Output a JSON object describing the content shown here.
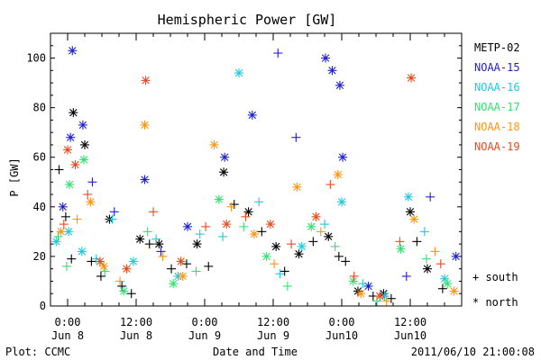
{
  "chart_data": {
    "type": "scatter",
    "title": "Hemispheric Power [GW]",
    "xlabel": "Date and Time",
    "ylabel": "P [GW]",
    "ylim": [
      0,
      110
    ],
    "xlim": [
      "2011-06-07 21:00",
      "2011-06-10 21:00"
    ],
    "grid": false,
    "legend_position": "right",
    "x_ticks": [
      {
        "t": "2011-06-08 00:00",
        "line1": "0:00",
        "line2": "Jun 8"
      },
      {
        "t": "2011-06-08 12:00",
        "line1": "12:00",
        "line2": "Jun 8"
      },
      {
        "t": "2011-06-09 00:00",
        "line1": "0:00",
        "line2": "Jun 9"
      },
      {
        "t": "2011-06-09 12:00",
        "line1": "12:00",
        "line2": "Jun 9"
      },
      {
        "t": "2011-06-10 00:00",
        "line1": "0:00",
        "line2": "Jun10"
      },
      {
        "t": "2011-06-10 12:00",
        "line1": "12:00",
        "line2": "Jun10"
      }
    ],
    "y_ticks": [
      0,
      20,
      40,
      60,
      80,
      100
    ],
    "markers": {
      "south": "+",
      "north": "*"
    },
    "marker_legend": [
      {
        "symbol": "+",
        "label": "south"
      },
      {
        "symbol": "*",
        "label": "north"
      }
    ],
    "series": [
      {
        "name": "METP-02",
        "color": "#000000",
        "points": [
          {
            "x": "2011-06-07 22:30",
            "y": 55,
            "hemisphere": "south"
          },
          {
            "x": "2011-06-07 23:40",
            "y": 36,
            "hemisphere": "south"
          },
          {
            "x": "2011-06-08 00:40",
            "y": 19,
            "hemisphere": "south"
          },
          {
            "x": "2011-06-08 01:00",
            "y": 78,
            "hemisphere": "north"
          },
          {
            "x": "2011-06-08 03:00",
            "y": 65,
            "hemisphere": "north"
          },
          {
            "x": "2011-06-08 04:10",
            "y": 18,
            "hemisphere": "south"
          },
          {
            "x": "2011-06-08 05:50",
            "y": 12,
            "hemisphere": "south"
          },
          {
            "x": "2011-06-08 07:20",
            "y": 35,
            "hemisphere": "north"
          },
          {
            "x": "2011-06-08 09:30",
            "y": 8,
            "hemisphere": "south"
          },
          {
            "x": "2011-06-08 11:10",
            "y": 5,
            "hemisphere": "south"
          },
          {
            "x": "2011-06-08 12:40",
            "y": 27,
            "hemisphere": "north"
          },
          {
            "x": "2011-06-08 14:20",
            "y": 25,
            "hemisphere": "south"
          },
          {
            "x": "2011-06-08 16:00",
            "y": 25,
            "hemisphere": "north"
          },
          {
            "x": "2011-06-08 18:10",
            "y": 15,
            "hemisphere": "south"
          },
          {
            "x": "2011-06-08 20:50",
            "y": 17,
            "hemisphere": "south"
          },
          {
            "x": "2011-06-08 22:40",
            "y": 25,
            "hemisphere": "north"
          },
          {
            "x": "2011-06-09 00:40",
            "y": 16,
            "hemisphere": "south"
          },
          {
            "x": "2011-06-09 03:20",
            "y": 54,
            "hemisphere": "north"
          },
          {
            "x": "2011-06-09 05:10",
            "y": 41,
            "hemisphere": "south"
          },
          {
            "x": "2011-06-09 07:40",
            "y": 38,
            "hemisphere": "north"
          },
          {
            "x": "2011-06-09 10:00",
            "y": 30,
            "hemisphere": "south"
          },
          {
            "x": "2011-06-09 12:30",
            "y": 24,
            "hemisphere": "north"
          },
          {
            "x": "2011-06-09 14:00",
            "y": 14,
            "hemisphere": "south"
          },
          {
            "x": "2011-06-09 16:30",
            "y": 21,
            "hemisphere": "north"
          },
          {
            "x": "2011-06-09 19:00",
            "y": 26,
            "hemisphere": "south"
          },
          {
            "x": "2011-06-09 21:40",
            "y": 28,
            "hemisphere": "north"
          },
          {
            "x": "2011-06-09 23:30",
            "y": 20,
            "hemisphere": "south"
          },
          {
            "x": "2011-06-10 00:40",
            "y": 18,
            "hemisphere": "south"
          },
          {
            "x": "2011-06-10 02:50",
            "y": 6,
            "hemisphere": "north"
          },
          {
            "x": "2011-06-10 05:30",
            "y": 4,
            "hemisphere": "south"
          },
          {
            "x": "2011-06-10 07:20",
            "y": 5,
            "hemisphere": "north"
          },
          {
            "x": "2011-06-10 08:40",
            "y": 3,
            "hemisphere": "south"
          },
          {
            "x": "2011-06-10 12:00",
            "y": 38,
            "hemisphere": "north"
          },
          {
            "x": "2011-06-10 13:10",
            "y": 26,
            "hemisphere": "south"
          },
          {
            "x": "2011-06-10 15:00",
            "y": 15,
            "hemisphere": "north"
          },
          {
            "x": "2011-06-10 17:40",
            "y": 7,
            "hemisphere": "south"
          }
        ]
      },
      {
        "name": "NOAA-15",
        "color": "#1f1fd0",
        "points": [
          {
            "x": "2011-06-07 23:10",
            "y": 40,
            "hemisphere": "north"
          },
          {
            "x": "2011-06-08 00:30",
            "y": 68,
            "hemisphere": "north"
          },
          {
            "x": "2011-06-08 00:50",
            "y": 103,
            "hemisphere": "north"
          },
          {
            "x": "2011-06-08 02:40",
            "y": 73,
            "hemisphere": "north"
          },
          {
            "x": "2011-06-08 04:20",
            "y": 50,
            "hemisphere": "south"
          },
          {
            "x": "2011-06-08 08:10",
            "y": 38,
            "hemisphere": "south"
          },
          {
            "x": "2011-06-08 13:30",
            "y": 51,
            "hemisphere": "north"
          },
          {
            "x": "2011-06-08 16:20",
            "y": 22,
            "hemisphere": "south"
          },
          {
            "x": "2011-06-08 21:00",
            "y": 32,
            "hemisphere": "north"
          },
          {
            "x": "2011-06-09 03:30",
            "y": 60,
            "hemisphere": "north"
          },
          {
            "x": "2011-06-09 08:20",
            "y": 77,
            "hemisphere": "north"
          },
          {
            "x": "2011-06-09 12:50",
            "y": 102,
            "hemisphere": "south"
          },
          {
            "x": "2011-06-09 16:00",
            "y": 68,
            "hemisphere": "south"
          },
          {
            "x": "2011-06-09 21:10",
            "y": 100,
            "hemisphere": "north"
          },
          {
            "x": "2011-06-09 22:20",
            "y": 95,
            "hemisphere": "north"
          },
          {
            "x": "2011-06-09 23:40",
            "y": 89,
            "hemisphere": "north"
          },
          {
            "x": "2011-06-10 00:10",
            "y": 60,
            "hemisphere": "north"
          },
          {
            "x": "2011-06-10 04:40",
            "y": 8,
            "hemisphere": "north"
          },
          {
            "x": "2011-06-10 11:20",
            "y": 12,
            "hemisphere": "south"
          },
          {
            "x": "2011-06-10 15:30",
            "y": 44,
            "hemisphere": "south"
          },
          {
            "x": "2011-06-10 20:00",
            "y": 20,
            "hemisphere": "north"
          }
        ]
      },
      {
        "name": "NOAA-16",
        "color": "#1fc8dc",
        "points": [
          {
            "x": "2011-06-07 22:00",
            "y": 26,
            "hemisphere": "north"
          },
          {
            "x": "2011-06-08 00:10",
            "y": 30,
            "hemisphere": "north"
          },
          {
            "x": "2011-06-08 02:30",
            "y": 22,
            "hemisphere": "north"
          },
          {
            "x": "2011-06-08 05:00",
            "y": 19,
            "hemisphere": "south"
          },
          {
            "x": "2011-06-08 07:50",
            "y": 35,
            "hemisphere": "south"
          },
          {
            "x": "2011-06-08 11:30",
            "y": 18,
            "hemisphere": "north"
          },
          {
            "x": "2011-06-08 15:30",
            "y": 27,
            "hemisphere": "south"
          },
          {
            "x": "2011-06-08 19:20",
            "y": 12,
            "hemisphere": "north"
          },
          {
            "x": "2011-06-08 23:10",
            "y": 29,
            "hemisphere": "south"
          },
          {
            "x": "2011-06-09 03:10",
            "y": 28,
            "hemisphere": "south"
          },
          {
            "x": "2011-06-09 06:00",
            "y": 94,
            "hemisphere": "north"
          },
          {
            "x": "2011-06-09 09:30",
            "y": 42,
            "hemisphere": "south"
          },
          {
            "x": "2011-06-09 13:10",
            "y": 13,
            "hemisphere": "south"
          },
          {
            "x": "2011-06-09 17:00",
            "y": 24,
            "hemisphere": "north"
          },
          {
            "x": "2011-06-09 21:00",
            "y": 33,
            "hemisphere": "south"
          },
          {
            "x": "2011-06-10 00:00",
            "y": 42,
            "hemisphere": "north"
          },
          {
            "x": "2011-06-10 03:40",
            "y": 9,
            "hemisphere": "south"
          },
          {
            "x": "2011-06-10 07:30",
            "y": 4,
            "hemisphere": "north"
          },
          {
            "x": "2011-06-10 11:40",
            "y": 44,
            "hemisphere": "north"
          },
          {
            "x": "2011-06-10 14:30",
            "y": 30,
            "hemisphere": "south"
          },
          {
            "x": "2011-06-10 18:00",
            "y": 11,
            "hemisphere": "north"
          }
        ]
      },
      {
        "name": "NOAA-17",
        "color": "#33e070",
        "points": [
          {
            "x": "2011-06-07 22:20",
            "y": 28,
            "hemisphere": "south"
          },
          {
            "x": "2011-06-07 23:50",
            "y": 16,
            "hemisphere": "south"
          },
          {
            "x": "2011-06-08 00:20",
            "y": 49,
            "hemisphere": "north"
          },
          {
            "x": "2011-06-08 02:50",
            "y": 59,
            "hemisphere": "north"
          },
          {
            "x": "2011-06-08 06:30",
            "y": 14,
            "hemisphere": "south"
          },
          {
            "x": "2011-06-08 09:50",
            "y": 6,
            "hemisphere": "north"
          },
          {
            "x": "2011-06-08 14:00",
            "y": 30,
            "hemisphere": "south"
          },
          {
            "x": "2011-06-08 18:30",
            "y": 9,
            "hemisphere": "north"
          },
          {
            "x": "2011-06-08 22:30",
            "y": 14,
            "hemisphere": "south"
          },
          {
            "x": "2011-06-09 02:30",
            "y": 43,
            "hemisphere": "north"
          },
          {
            "x": "2011-06-09 06:50",
            "y": 32,
            "hemisphere": "south"
          },
          {
            "x": "2011-06-09 10:50",
            "y": 20,
            "hemisphere": "north"
          },
          {
            "x": "2011-06-09 14:30",
            "y": 8,
            "hemisphere": "south"
          },
          {
            "x": "2011-06-09 18:40",
            "y": 32,
            "hemisphere": "north"
          },
          {
            "x": "2011-06-09 22:50",
            "y": 24,
            "hemisphere": "south"
          },
          {
            "x": "2011-06-10 02:00",
            "y": 10,
            "hemisphere": "north"
          },
          {
            "x": "2011-06-10 06:10",
            "y": 2,
            "hemisphere": "south"
          },
          {
            "x": "2011-06-10 10:20",
            "y": 23,
            "hemisphere": "north"
          },
          {
            "x": "2011-06-10 14:50",
            "y": 19,
            "hemisphere": "south"
          },
          {
            "x": "2011-06-10 18:30",
            "y": 9,
            "hemisphere": "north"
          }
        ]
      },
      {
        "name": "NOAA-18",
        "color": "#ff9410",
        "points": [
          {
            "x": "2011-06-07 22:50",
            "y": 30,
            "hemisphere": "north"
          },
          {
            "x": "2011-06-08 01:40",
            "y": 35,
            "hemisphere": "south"
          },
          {
            "x": "2011-06-08 04:00",
            "y": 42,
            "hemisphere": "north"
          },
          {
            "x": "2011-06-08 06:20",
            "y": 16,
            "hemisphere": "north"
          },
          {
            "x": "2011-06-08 09:10",
            "y": 10,
            "hemisphere": "south"
          },
          {
            "x": "2011-06-08 13:30",
            "y": 73,
            "hemisphere": "north"
          },
          {
            "x": "2011-06-08 16:40",
            "y": 20,
            "hemisphere": "south"
          },
          {
            "x": "2011-06-08 20:10",
            "y": 12,
            "hemisphere": "north"
          },
          {
            "x": "2011-06-09 01:40",
            "y": 65,
            "hemisphere": "north"
          },
          {
            "x": "2011-06-09 04:40",
            "y": 40,
            "hemisphere": "south"
          },
          {
            "x": "2011-06-09 08:40",
            "y": 29,
            "hemisphere": "north"
          },
          {
            "x": "2011-06-09 12:10",
            "y": 17,
            "hemisphere": "south"
          },
          {
            "x": "2011-06-09 16:10",
            "y": 48,
            "hemisphere": "north"
          },
          {
            "x": "2011-06-09 20:20",
            "y": 30,
            "hemisphere": "south"
          },
          {
            "x": "2011-06-09 23:20",
            "y": 53,
            "hemisphere": "north"
          },
          {
            "x": "2011-06-10 03:20",
            "y": 5,
            "hemisphere": "north"
          },
          {
            "x": "2011-06-10 07:50",
            "y": 2,
            "hemisphere": "south"
          },
          {
            "x": "2011-06-10 12:40",
            "y": 35,
            "hemisphere": "north"
          },
          {
            "x": "2011-06-10 16:20",
            "y": 22,
            "hemisphere": "south"
          },
          {
            "x": "2011-06-10 19:40",
            "y": 6,
            "hemisphere": "north"
          }
        ]
      },
      {
        "name": "NOAA-19",
        "color": "#e84a1c",
        "points": [
          {
            "x": "2011-06-07 23:20",
            "y": 33,
            "hemisphere": "south"
          },
          {
            "x": "2011-06-08 00:00",
            "y": 63,
            "hemisphere": "north"
          },
          {
            "x": "2011-06-08 01:20",
            "y": 57,
            "hemisphere": "north"
          },
          {
            "x": "2011-06-08 03:30",
            "y": 45,
            "hemisphere": "south"
          },
          {
            "x": "2011-06-08 05:40",
            "y": 18,
            "hemisphere": "north"
          },
          {
            "x": "2011-06-08 10:20",
            "y": 15,
            "hemisphere": "north"
          },
          {
            "x": "2011-06-08 13:40",
            "y": 91,
            "hemisphere": "north"
          },
          {
            "x": "2011-06-08 15:00",
            "y": 38,
            "hemisphere": "south"
          },
          {
            "x": "2011-06-08 19:50",
            "y": 18,
            "hemisphere": "north"
          },
          {
            "x": "2011-06-09 00:10",
            "y": 32,
            "hemisphere": "south"
          },
          {
            "x": "2011-06-09 03:50",
            "y": 33,
            "hemisphere": "north"
          },
          {
            "x": "2011-06-09 07:10",
            "y": 36,
            "hemisphere": "south"
          },
          {
            "x": "2011-06-09 11:30",
            "y": 33,
            "hemisphere": "north"
          },
          {
            "x": "2011-06-09 15:10",
            "y": 25,
            "hemisphere": "south"
          },
          {
            "x": "2011-06-09 19:30",
            "y": 36,
            "hemisphere": "north"
          },
          {
            "x": "2011-06-09 22:00",
            "y": 49,
            "hemisphere": "south"
          },
          {
            "x": "2011-06-10 02:10",
            "y": 12,
            "hemisphere": "south"
          },
          {
            "x": "2011-06-10 06:40",
            "y": 4,
            "hemisphere": "north"
          },
          {
            "x": "2011-06-10 10:10",
            "y": 26,
            "hemisphere": "south"
          },
          {
            "x": "2011-06-10 12:10",
            "y": 92,
            "hemisphere": "north"
          },
          {
            "x": "2011-06-10 17:20",
            "y": 17,
            "hemisphere": "south"
          }
        ]
      }
    ]
  },
  "footer": {
    "plot_credit": "Plot: CCMC",
    "timestamp": "2011/06/10 21:00:08"
  }
}
